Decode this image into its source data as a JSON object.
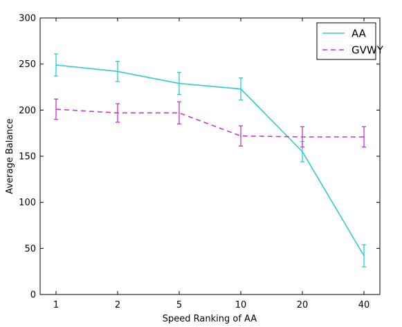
{
  "chart_data": {
    "type": "line",
    "categories": [
      "1",
      "2",
      "5",
      "10",
      "20",
      "40"
    ],
    "xlabel": "Speed Ranking of AA",
    "ylabel": "Average Balance",
    "ylim": [
      0,
      300
    ],
    "yticks": [
      0,
      50,
      100,
      150,
      200,
      250,
      300
    ],
    "grid": false,
    "legend_position": "top-right",
    "series": [
      {
        "name": "AA",
        "color": "#2ecccc",
        "line_style": "solid",
        "values": [
          249,
          242,
          229,
          223,
          155,
          42
        ],
        "errors": [
          12,
          11,
          12,
          12,
          11,
          12
        ]
      },
      {
        "name": "GVWY",
        "color": "#cc33cc",
        "line_style": "dashed",
        "values": [
          201,
          197,
          197,
          172,
          171,
          171
        ],
        "errors": [
          11,
          10,
          12,
          11,
          11,
          11
        ]
      }
    ]
  }
}
